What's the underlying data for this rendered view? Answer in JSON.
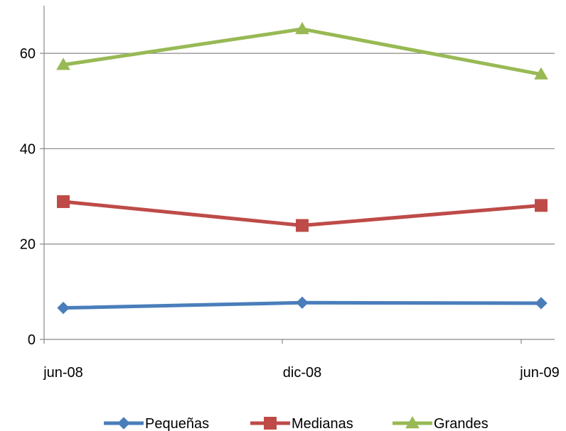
{
  "chart_data": {
    "type": "line",
    "title": "",
    "xlabel": "",
    "ylabel": "",
    "categories": [
      "jun-08",
      "dic-08",
      "jun-09"
    ],
    "ylim": [
      0,
      70
    ],
    "yticks": [
      0,
      20,
      40,
      60
    ],
    "grid": true,
    "legend": "bottom",
    "series": [
      {
        "name": "Pequeñas",
        "values": [
          6.6,
          7.7,
          7.6
        ],
        "color": "#4a7ebb",
        "marker": "diamond"
      },
      {
        "name": "Medianas",
        "values": [
          28.9,
          23.9,
          28.1
        ],
        "color": "#be4b48",
        "marker": "square"
      },
      {
        "name": "Grandes",
        "values": [
          57.6,
          65.1,
          55.6
        ],
        "color": "#98b954",
        "marker": "triangle"
      }
    ]
  }
}
